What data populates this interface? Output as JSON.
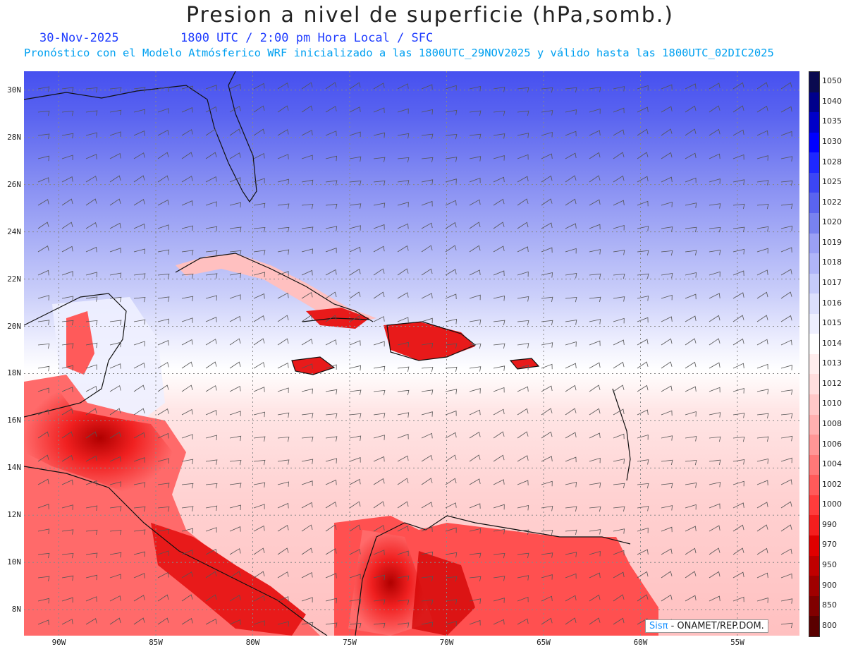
{
  "title": "Presion a nivel de superficie (hPa,somb.)",
  "date": "30-Nov-2025",
  "time_line": "1800 UTC / 2:00 pm Hora Local / SFC",
  "model_line": "Pronóstico con el Modelo Atmósferico WRF inicializado a las 1800UTC_29NOV2025 y válido hasta las  1800UTC_02DIC2025",
  "credit": {
    "brand": "Sisπ",
    "text": " - ONAMET/REP.DOM."
  },
  "map": {
    "lat_labels": [
      "30N",
      "28N",
      "26N",
      "24N",
      "22N",
      "20N",
      "18N",
      "16N",
      "14N",
      "12N",
      "10N",
      "8N"
    ],
    "lat_values": [
      30,
      28,
      26,
      24,
      22,
      20,
      18,
      16,
      14,
      12,
      10,
      8
    ],
    "lon_labels": [
      "90W",
      "85W",
      "80W",
      "75W",
      "70W",
      "65W",
      "60W",
      "55W"
    ],
    "lon_values": [
      -90,
      -85,
      -80,
      -75,
      -70,
      -65,
      -60,
      -55
    ],
    "lon_range": [
      -91.8,
      -51.8
    ],
    "lat_range": [
      6.9,
      30.8
    ]
  },
  "colorbar": {
    "levels": [
      "1050",
      "1040",
      "1035",
      "1030",
      "1028",
      "1025",
      "1022",
      "1020",
      "1019",
      "1018",
      "1017",
      "1016",
      "1015",
      "1014",
      "1013",
      "1012",
      "1010",
      "1008",
      "1006",
      "1004",
      "1002",
      "1000",
      "990",
      "970",
      "950",
      "900",
      "850",
      "800"
    ],
    "colors": [
      "#0a0a50",
      "#00008c",
      "#0000c8",
      "#0000ff",
      "#1e28ff",
      "#3c46f5",
      "#5a64f0",
      "#7882f0",
      "#9aa0f5",
      "#b0b5f8",
      "#c6cbfa",
      "#dcdffc",
      "#eeeffe",
      "#ffffff",
      "#ffeeee",
      "#ffdede",
      "#ffc8c8",
      "#ffb0b0",
      "#ff9696",
      "#ff7878",
      "#ff5a5a",
      "#ff3c3c",
      "#f51e1e",
      "#e00000",
      "#c00000",
      "#a00000",
      "#800000",
      "#5a0000"
    ]
  }
}
